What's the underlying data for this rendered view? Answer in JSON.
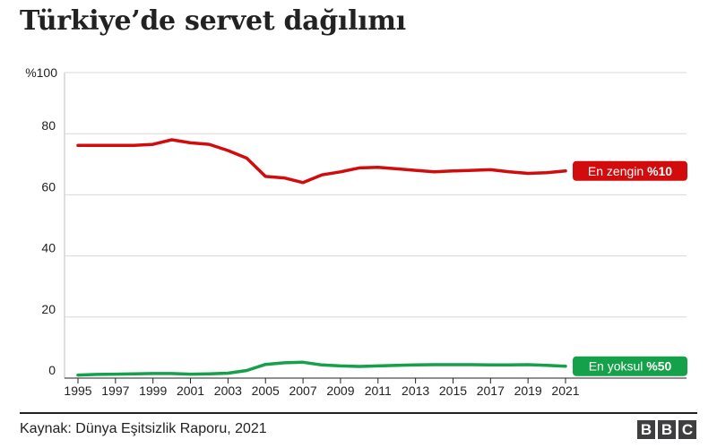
{
  "title": "Türkiye’de servet dağılımı",
  "source": "Kaynak: Dünya Eşitsizlik Raporu, 2021",
  "logo": {
    "letters": [
      "B",
      "B",
      "C"
    ]
  },
  "colors": {
    "top10": "#d20c0c",
    "bottom50": "#15a04a",
    "grid": "#d8d8d8",
    "text": "#222222"
  },
  "chart_data": {
    "type": "line",
    "title": "Türkiye’de servet dağılımı",
    "xlabel": "",
    "ylabel": "",
    "xlim": [
      1995,
      2021
    ],
    "ylim": [
      0,
      100
    ],
    "y_ticks": [
      {
        "value": 0,
        "label": "0"
      },
      {
        "value": 20,
        "label": "20"
      },
      {
        "value": 40,
        "label": "40"
      },
      {
        "value": 60,
        "label": "60"
      },
      {
        "value": 80,
        "label": "80"
      },
      {
        "value": 100,
        "label": "%100"
      }
    ],
    "x_ticks": [
      "1995",
      "1997",
      "1999",
      "2001",
      "2003",
      "2005",
      "2007",
      "2009",
      "2011",
      "2013",
      "2015",
      "2017",
      "2019",
      "2021"
    ],
    "grid": true,
    "legend": "direct labels at line ends",
    "x": [
      1995,
      1996,
      1997,
      1998,
      1999,
      2000,
      2001,
      2002,
      2003,
      2004,
      2005,
      2006,
      2007,
      2008,
      2009,
      2010,
      2011,
      2012,
      2013,
      2014,
      2015,
      2016,
      2017,
      2018,
      2019,
      2020,
      2021
    ],
    "series": [
      {
        "key": "top10",
        "name_prefix": "En zengin ",
        "name_bold": "%10",
        "color": "#d20c0c",
        "values": [
          76.2,
          76.2,
          76.2,
          76.2,
          76.5,
          78.0,
          77.0,
          76.5,
          74.5,
          72.0,
          66.0,
          65.5,
          64.0,
          66.5,
          67.5,
          68.8,
          69.0,
          68.5,
          68.0,
          67.5,
          67.8,
          68.0,
          68.2,
          67.5,
          67.0,
          67.2,
          67.8
        ]
      },
      {
        "key": "bottom50",
        "name_prefix": "En yoksul ",
        "name_bold": "%50",
        "color": "#15a04a",
        "values": [
          1.0,
          1.2,
          1.3,
          1.4,
          1.5,
          1.5,
          1.3,
          1.4,
          1.6,
          2.5,
          4.5,
          5.0,
          5.2,
          4.3,
          4.0,
          3.8,
          4.0,
          4.2,
          4.3,
          4.4,
          4.4,
          4.4,
          4.3,
          4.3,
          4.4,
          4.2,
          3.9
        ]
      }
    ]
  }
}
